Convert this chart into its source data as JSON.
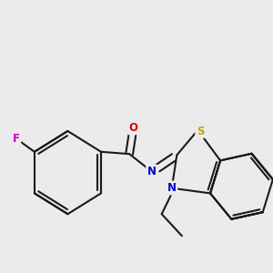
{
  "background_color": "#ebebeb",
  "bond_color": "#1a1a1a",
  "atom_colors": {
    "F": "#cc00cc",
    "O": "#dd0000",
    "N": "#0000cc",
    "S": "#bbaa00"
  },
  "bond_lw": 1.5,
  "figsize": [
    3.0,
    3.0
  ],
  "dpi": 100
}
